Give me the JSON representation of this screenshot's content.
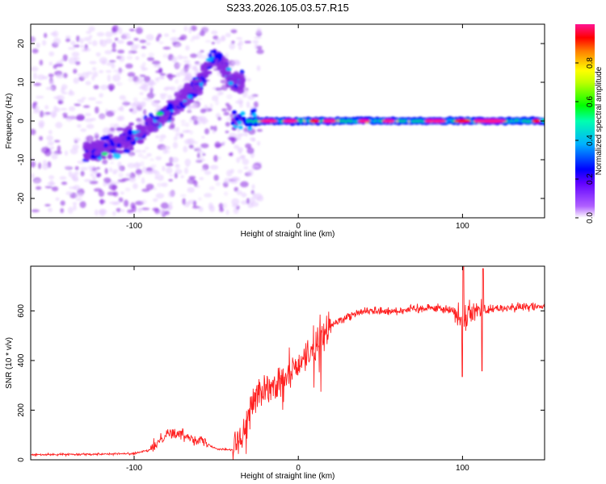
{
  "title": "S233.2026.105.03.57.R15",
  "chart_data": [
    {
      "type": "heatmap",
      "name": "spectrogram",
      "xlabel": "Height of straight line (km)",
      "ylabel": "Frequency (Hz)",
      "xlim": [
        -163,
        150
      ],
      "ylim": [
        -25,
        25
      ],
      "xticks": [
        -100,
        0,
        100
      ],
      "xtick_labels": [
        "-100",
        "0",
        "100"
      ],
      "yticks": [
        -20,
        -10,
        0,
        10,
        20
      ],
      "ytick_labels": [
        "-20",
        "-10",
        "0",
        "10",
        "20"
      ],
      "colorbar": {
        "label": "Normalized spectral amplitude",
        "range": [
          0,
          1
        ],
        "ticks": [
          0.0,
          0.2,
          0.4,
          0.6,
          0.8
        ],
        "tick_labels": [
          "0.0",
          "0.2",
          "0.4",
          "0.6",
          "0.8"
        ],
        "colors": [
          "#e6ccff",
          "#8a2be2",
          "#0000ff",
          "#00bfff",
          "#00ff66",
          "#ffff00",
          "#ff8000",
          "#ff0000",
          "#ff1493"
        ]
      },
      "features": {
        "rising_track": {
          "x": [
            -130,
            -100,
            -80,
            -60,
            -50,
            -40
          ],
          "y": [
            -9,
            -4,
            2,
            10,
            17,
            10
          ]
        },
        "steady_track": {
          "x_start": -30,
          "x_end": 150,
          "frequency": 0
        }
      }
    },
    {
      "type": "line",
      "name": "snr",
      "xlabel": "Height of straight line (km)",
      "ylabel": "SNR (10 * v/v)",
      "xlim": [
        -163,
        150
      ],
      "ylim": [
        0,
        780
      ],
      "xticks": [
        -100,
        0,
        100
      ],
      "xtick_labels": [
        "-100",
        "0",
        "100"
      ],
      "yticks": [
        0,
        200,
        400,
        600
      ],
      "ytick_labels": [
        "0",
        "200",
        "400",
        "600"
      ],
      "color": "#ff2020",
      "envelope": {
        "x": [
          -163,
          -100,
          -90,
          -80,
          -70,
          -60,
          -50,
          -40,
          -35,
          -30,
          -25,
          -20,
          -10,
          0,
          10,
          20,
          30,
          40,
          60,
          80,
          95,
          100,
          105,
          120,
          140,
          150
        ],
        "y": [
          20,
          25,
          40,
          110,
          100,
          80,
          45,
          40,
          90,
          200,
          270,
          280,
          310,
          380,
          460,
          540,
          580,
          600,
          600,
          615,
          600,
          560,
          600,
          610,
          615,
          620
        ]
      }
    }
  ]
}
